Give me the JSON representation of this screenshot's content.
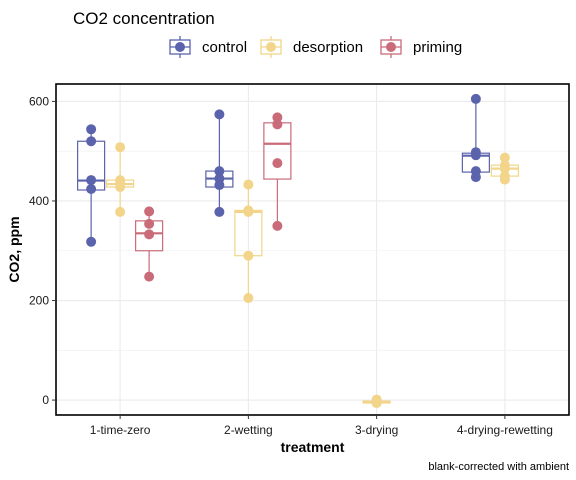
{
  "chart_data": {
    "type": "boxplot",
    "title": "CO2 concentration",
    "xlabel": "treatment",
    "ylabel": "CO2, ppm",
    "caption": "blank-corrected with ambient",
    "categories": [
      "1-time-zero",
      "2-wetting",
      "3-drying",
      "4-drying-rewetting"
    ],
    "ylim": [
      -30,
      635
    ],
    "yticks": [
      0,
      200,
      400,
      600
    ],
    "grid": true,
    "legend_position": "top",
    "series": [
      {
        "name": "control",
        "color": "#5b63ad",
        "boxes": [
          {
            "category": "1-time-zero",
            "q1": 422,
            "median": 441,
            "q3": 520,
            "whisker_low": 318,
            "whisker_high": 544
          },
          {
            "category": "2-wetting",
            "q1": 428,
            "median": 445,
            "q3": 460,
            "whisker_low": 378,
            "whisker_high": 574
          },
          null,
          {
            "category": "4-drying-rewetting",
            "q1": 458,
            "median": 491,
            "q3": 496,
            "whisker_low": 448,
            "whisker_high": 605
          }
        ],
        "points": [
          [
            [
              544,
              520,
              442,
              424,
              318
            ]
          ],
          [
            [
              574,
              460,
              445,
              432,
              378
            ]
          ],
          [],
          [
            [
              605,
              498,
              492,
              460,
              448
            ]
          ]
        ]
      },
      {
        "name": "desorption",
        "color": "#f2d58a",
        "boxes": [
          {
            "category": "1-time-zero",
            "q1": 428,
            "median": 434,
            "q3": 442,
            "whisker_low": 378,
            "whisker_high": 508
          },
          {
            "category": "2-wetting",
            "q1": 290,
            "median": 378,
            "q3": 381,
            "whisker_low": 205,
            "whisker_high": 433
          },
          {
            "category": "3-drying",
            "q1": -6,
            "median": -3,
            "q3": -2,
            "whisker_low": -6,
            "whisker_high": 1
          },
          {
            "category": "4-drying-rewetting",
            "q1": 450,
            "median": 465,
            "q3": 472,
            "whisker_low": 443,
            "whisker_high": 487
          }
        ],
        "points": [
          [
            [
              508,
              442,
              436,
              428,
              378
            ]
          ],
          [
            [
              433,
              381,
              378,
              290,
              205
            ]
          ],
          [
            [
              1,
              -2,
              -3,
              -5,
              -6
            ]
          ],
          [
            [
              487,
              472,
              465,
              450,
              443
            ]
          ]
        ]
      },
      {
        "name": "priming",
        "color": "#c96b79",
        "boxes": [
          {
            "category": "1-time-zero",
            "q1": 300,
            "median": 335,
            "q3": 360,
            "whisker_low": 248,
            "whisker_high": 379
          },
          {
            "category": "2-wetting",
            "q1": 444,
            "median": 515,
            "q3": 557,
            "whisker_low": 350,
            "whisker_high": 568
          },
          null,
          null
        ],
        "points": [
          [
            [
              379,
              354,
              333,
              248
            ]
          ],
          [
            [
              568,
              554,
              476,
              350
            ]
          ],
          [],
          []
        ]
      }
    ]
  }
}
